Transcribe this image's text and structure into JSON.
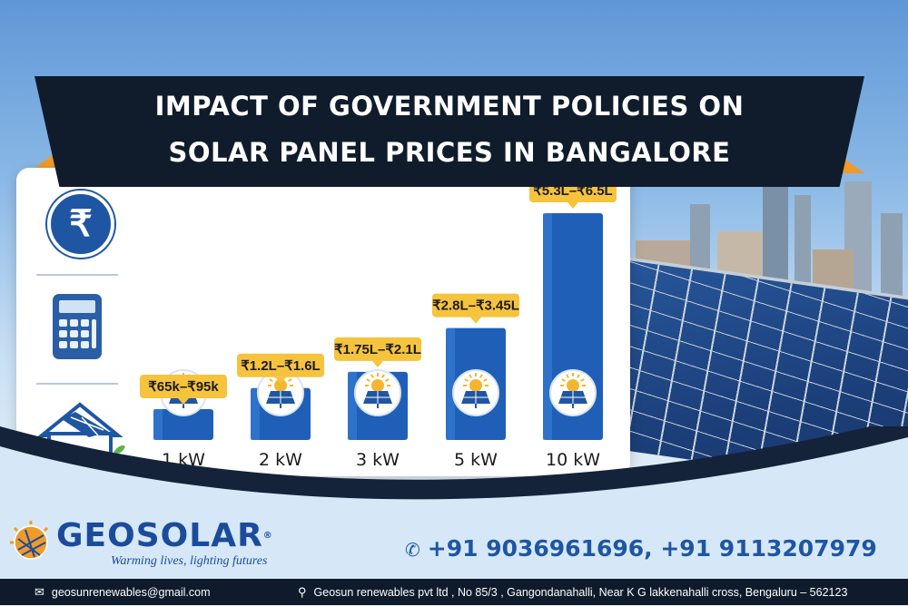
{
  "banner": {
    "title_line1": "IMPACT OF GOVERNMENT POLICIES ON",
    "title_line2": "SOLAR PANEL PRICES IN BANGALORE"
  },
  "sidebar_icons": [
    "rupee-icon",
    "calculator-icon",
    "solar-house-icon"
  ],
  "rupee_symbol": "₹",
  "chart_data": {
    "type": "bar",
    "categories": [
      "1 kW",
      "2 kW",
      "3 kW",
      "5 kW",
      "10 kW"
    ],
    "value_labels": [
      "₹65k–₹95k",
      "₹1.2L–₹1.6L",
      "₹1.75L–₹2.1L",
      "₹2.8L–₹3.45L",
      "₹5.3L–₹6.5L"
    ],
    "values_low_inr": [
      65000,
      120000,
      175000,
      280000,
      530000
    ],
    "values_high_inr": [
      95000,
      160000,
      210000,
      345000,
      650000
    ],
    "bar_icon": "solar-panel-sun-icon",
    "title": "",
    "xlabel": "",
    "ylabel": "",
    "grid": false,
    "bar_color": "#1f5fb8",
    "label_color": "#f6c33d"
  },
  "brand": {
    "name": "GEOSOLAR",
    "registered_mark": "®",
    "tagline": "Warming lives, lighting futures",
    "phone": "+91 9036961696, +91 9113207979"
  },
  "footer": {
    "email": "geosunrenewables@gmail.com",
    "address": "Geosun renewables pvt ltd , No 85/3 , Gangondanahalli, Near K G lakkenahalli cross, Bengaluru – 562123"
  },
  "colors": {
    "banner_bg": "#101c2c",
    "accent_orange": "#f09a2a",
    "brand_blue": "#1a4c9a"
  }
}
